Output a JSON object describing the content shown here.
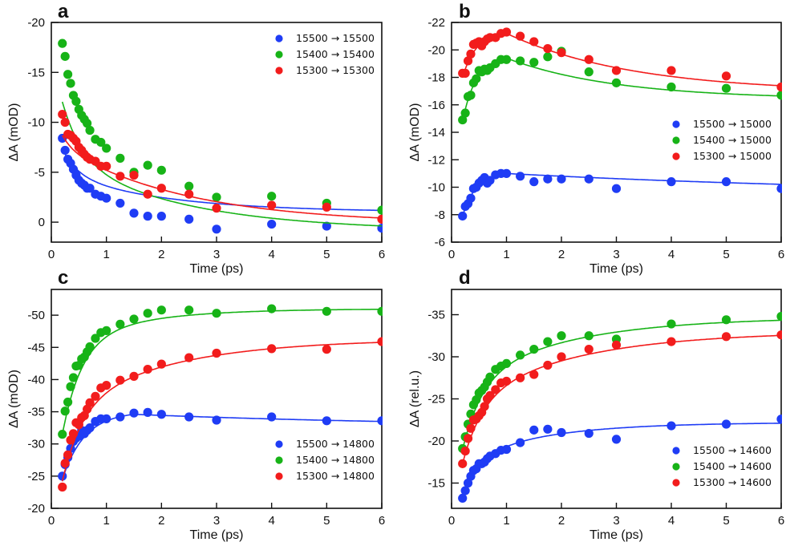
{
  "colors": {
    "blue": "#1f3cf5",
    "green": "#17b317",
    "red": "#f21c1c",
    "axis": "#111111"
  },
  "chart_data": [
    {
      "panel": "a",
      "type": "scatter",
      "title": "a",
      "xlabel": "Time (ps)",
      "ylabel": "ΔA (mOD)",
      "xlim": [
        0,
        6
      ],
      "ylim": [
        2,
        -20
      ],
      "y_inverted": true,
      "xticks": [
        0,
        1,
        2,
        3,
        4,
        5,
        6
      ],
      "yticks": [
        0,
        -5,
        -10,
        -15,
        -20
      ],
      "ytick_labels": [
        "0",
        "-5",
        "-10",
        "-15",
        "-20"
      ],
      "legend_position": "top-right",
      "grid": false,
      "series": [
        {
          "name": "15500 → 15500",
          "color": "blue",
          "x": [
            0.2,
            0.25,
            0.3,
            0.35,
            0.4,
            0.45,
            0.5,
            0.55,
            0.6,
            0.65,
            0.7,
            0.8,
            0.9,
            1.0,
            1.25,
            1.5,
            1.75,
            2,
            2.5,
            3,
            4,
            5,
            6
          ],
          "y": [
            -8.4,
            -7.2,
            -6.3,
            -5.9,
            -5.3,
            -4.7,
            -4.2,
            -3.9,
            -3.7,
            -3.4,
            -3.4,
            -2.8,
            -2.6,
            -2.4,
            -1.9,
            -0.9,
            -0.6,
            -0.6,
            -0.3,
            0.7,
            0.2,
            0.4,
            0.6
          ],
          "fit": {
            "model": "exp2",
            "A1": -5.2,
            "t1": 0.28,
            "A2": -4.2,
            "t2": 1.9,
            "c": 1.0
          }
        },
        {
          "name": "15400 → 15400",
          "color": "green",
          "x": [
            0.2,
            0.25,
            0.3,
            0.35,
            0.4,
            0.45,
            0.5,
            0.55,
            0.6,
            0.65,
            0.7,
            0.8,
            0.9,
            1.0,
            1.25,
            1.5,
            1.75,
            2,
            2.5,
            3,
            4,
            5,
            6
          ],
          "y": [
            -17.9,
            -16.6,
            -14.8,
            -13.9,
            -12.7,
            -12.1,
            -11.3,
            -10.7,
            -10.3,
            -9.9,
            -9.2,
            -8.3,
            -8.0,
            -7.4,
            -6.4,
            -5.0,
            -5.7,
            -5.2,
            -3.6,
            -2.5,
            -2.6,
            -1.9,
            -1.2
          ],
          "fit": {
            "model": "exp2",
            "A1": -10.0,
            "t1": 0.35,
            "A2": -8.0,
            "t2": 2.2,
            "c": -0.9
          }
        },
        {
          "name": "15300 → 15300",
          "color": "red",
          "x": [
            0.2,
            0.25,
            0.3,
            0.35,
            0.4,
            0.45,
            0.5,
            0.55,
            0.6,
            0.65,
            0.7,
            0.8,
            0.9,
            1.0,
            1.25,
            1.5,
            1.75,
            2,
            2.5,
            3,
            4,
            5,
            6
          ],
          "y": [
            -10.8,
            -10.0,
            -8.8,
            -8.7,
            -8.4,
            -8.1,
            -7.5,
            -7.2,
            -6.8,
            -6.5,
            -6.3,
            -6.1,
            -5.6,
            -5.6,
            -4.6,
            -4.7,
            -2.8,
            -3.4,
            -2.8,
            -1.4,
            -1.7,
            -1.5,
            -0.3
          ],
          "fit": {
            "model": "exp2",
            "A1": -3.5,
            "t1": 0.2,
            "A2": -8.3,
            "t2": 2.3,
            "c": -0.2
          }
        }
      ]
    },
    {
      "panel": "b",
      "type": "scatter",
      "title": "b",
      "xlabel": "Time (ps)",
      "ylabel": "ΔA (mOD)",
      "xlim": [
        0,
        6
      ],
      "ylim": [
        -6,
        -22
      ],
      "y_inverted": true,
      "xticks": [
        0,
        1,
        2,
        3,
        4,
        5,
        6
      ],
      "yticks": [
        -6,
        -8,
        -10,
        -12,
        -14,
        -16,
        -18,
        -20,
        -22
      ],
      "ytick_labels": [
        "-6",
        "-8",
        "-10",
        "-12",
        "-14",
        "-16",
        "-18",
        "-20",
        "-22"
      ],
      "legend_position": "center-right",
      "grid": false,
      "series": [
        {
          "name": "15500 → 15000",
          "color": "blue",
          "x": [
            0.2,
            0.25,
            0.3,
            0.35,
            0.4,
            0.45,
            0.5,
            0.55,
            0.6,
            0.65,
            0.7,
            0.8,
            0.9,
            1.0,
            1.25,
            1.5,
            1.75,
            2,
            2.5,
            3,
            4,
            5,
            6
          ],
          "y": [
            -7.9,
            -8.6,
            -8.8,
            -9.2,
            -9.9,
            -10.0,
            -10.3,
            -10.5,
            -10.7,
            -10.3,
            -10.5,
            -10.9,
            -11.0,
            -11.0,
            -10.8,
            -10.4,
            -10.6,
            -10.6,
            -10.6,
            -9.9,
            -10.4,
            -10.4,
            -9.9
          ],
          "fit": {
            "model": "risedecay",
            "peak": 1.0,
            "y0": -7.9,
            "ypk": -11.0,
            "yinf": -9.3,
            "td": 8.0
          }
        },
        {
          "name": "15400 → 15000",
          "color": "green",
          "x": [
            0.2,
            0.25,
            0.3,
            0.35,
            0.4,
            0.45,
            0.5,
            0.55,
            0.6,
            0.65,
            0.7,
            0.8,
            0.9,
            1.0,
            1.25,
            1.5,
            1.75,
            2,
            2.5,
            3,
            4,
            5,
            6
          ],
          "y": [
            -14.9,
            -15.4,
            -16.6,
            -16.7,
            -17.6,
            -17.9,
            -18.5,
            -18.4,
            -18.6,
            -18.5,
            -18.7,
            -19.0,
            -19.3,
            -19.3,
            -19.2,
            -19.1,
            -19.5,
            -19.9,
            -18.4,
            -17.6,
            -17.3,
            -17.2,
            -16.7
          ],
          "fit": {
            "model": "risedecay",
            "peak": 1.0,
            "y0": -14.8,
            "ypk": -19.4,
            "yinf": -16.4,
            "td": 2.0
          }
        },
        {
          "name": "15300 → 15000",
          "color": "red",
          "x": [
            0.2,
            0.25,
            0.3,
            0.35,
            0.4,
            0.45,
            0.5,
            0.55,
            0.6,
            0.65,
            0.7,
            0.8,
            0.9,
            1.0,
            1.25,
            1.5,
            1.75,
            2,
            2.5,
            3,
            4,
            5,
            6
          ],
          "y": [
            -18.3,
            -18.3,
            -19.2,
            -19.7,
            -20.4,
            -20.5,
            -20.6,
            -20.3,
            -20.6,
            -20.8,
            -20.9,
            -20.9,
            -21.2,
            -21.3,
            -21.0,
            -20.6,
            -20.1,
            -19.8,
            -19.3,
            -18.5,
            -18.5,
            -18.1,
            -17.3
          ],
          "fit": {
            "model": "risedecay",
            "peak": 1.0,
            "y0": -18.0,
            "ypk": -21.2,
            "yinf": -16.9,
            "td": 2.3
          }
        }
      ]
    },
    {
      "panel": "c",
      "type": "scatter",
      "title": "c",
      "xlabel": "Time (ps)",
      "ylabel": "ΔA (mOD)",
      "xlim": [
        0,
        6
      ],
      "ylim": [
        -20,
        -54
      ],
      "y_inverted": true,
      "xticks": [
        0,
        1,
        2,
        3,
        4,
        5,
        6
      ],
      "yticks": [
        -20,
        -25,
        -30,
        -35,
        -40,
        -45,
        -50
      ],
      "ytick_labels": [
        "-20",
        "-25",
        "-30",
        "-35",
        "-40",
        "-45",
        "-50"
      ],
      "legend_position": "bottom-right",
      "grid": false,
      "series": [
        {
          "name": "15500 → 14800",
          "color": "blue",
          "x": [
            0.2,
            0.25,
            0.3,
            0.35,
            0.4,
            0.45,
            0.5,
            0.55,
            0.6,
            0.65,
            0.7,
            0.8,
            0.9,
            1.0,
            1.25,
            1.5,
            1.75,
            2,
            2.5,
            3,
            4,
            5,
            6
          ],
          "y": [
            -25.0,
            -26.8,
            -27.9,
            -29.3,
            -30.4,
            -30.9,
            -31.2,
            -32.1,
            -31.6,
            -32.1,
            -32.5,
            -33.5,
            -33.9,
            -33.9,
            -34.2,
            -34.8,
            -34.9,
            -34.6,
            -34.2,
            -33.7,
            -34.2,
            -33.6,
            -33.6
          ],
          "fit": {
            "model": "risedecay",
            "peak": 1.5,
            "y0": -24.5,
            "ypk": -34.6,
            "yinf": -32.5,
            "td": 6.0
          }
        },
        {
          "name": "15400 → 14800",
          "color": "green",
          "x": [
            0.2,
            0.25,
            0.3,
            0.35,
            0.4,
            0.45,
            0.5,
            0.55,
            0.6,
            0.65,
            0.7,
            0.8,
            0.9,
            1.0,
            1.25,
            1.5,
            1.75,
            2,
            2.5,
            3,
            4,
            5,
            6
          ],
          "y": [
            -31.5,
            -35.1,
            -36.5,
            -38.9,
            -40.3,
            -42.1,
            -42.2,
            -43.2,
            -43.5,
            -44.3,
            -45.1,
            -46.4,
            -47.3,
            -47.6,
            -48.6,
            -49.4,
            -50.3,
            -50.8,
            -50.8,
            -50.3,
            -51.0,
            -50.6,
            -50.6
          ],
          "fit": {
            "model": "exp2rise",
            "A1": -14.0,
            "t1": 0.35,
            "A2": -5.0,
            "t2": 1.4,
            "c": -51.0,
            "t0": 0.2,
            "y0": -31.5
          }
        },
        {
          "name": "15300 → 14800",
          "color": "red",
          "x": [
            0.2,
            0.25,
            0.3,
            0.35,
            0.4,
            0.45,
            0.5,
            0.55,
            0.6,
            0.65,
            0.7,
            0.8,
            0.9,
            1.0,
            1.25,
            1.5,
            1.75,
            2,
            2.5,
            3,
            4,
            5,
            6
          ],
          "y": [
            -23.3,
            -27.0,
            -28.3,
            -30.6,
            -31.6,
            -33.3,
            -33.0,
            -34.1,
            -34.4,
            -35.4,
            -36.4,
            -37.4,
            -38.7,
            -39.1,
            -39.9,
            -40.5,
            -41.6,
            -42.4,
            -43.4,
            -44.1,
            -44.8,
            -44.7,
            -45.9
          ],
          "fit": {
            "model": "exp2rise",
            "A1": -11.5,
            "t1": 0.35,
            "A2": -11.5,
            "t2": 1.9,
            "c": -46.3,
            "t0": 0.2,
            "y0": -24.2
          }
        }
      ]
    },
    {
      "panel": "d",
      "type": "scatter",
      "title": "d",
      "xlabel": "Time (ps)",
      "ylabel": "ΔA (rel.u.)",
      "xlim": [
        0,
        6
      ],
      "ylim": [
        -12,
        -38
      ],
      "y_inverted": true,
      "xticks": [
        0,
        1,
        2,
        3,
        4,
        5,
        6
      ],
      "yticks": [
        -15,
        -20,
        -25,
        -30,
        -35
      ],
      "ytick_labels": [
        "-15",
        "-20",
        "-25",
        "-30",
        "-35"
      ],
      "legend_position": "bottom-right",
      "grid": false,
      "series": [
        {
          "name": "15500 → 14600",
          "color": "blue",
          "x": [
            0.2,
            0.25,
            0.3,
            0.35,
            0.4,
            0.45,
            0.5,
            0.55,
            0.6,
            0.65,
            0.7,
            0.8,
            0.9,
            1.0,
            1.25,
            1.5,
            1.75,
            2,
            2.5,
            3,
            4,
            5,
            6
          ],
          "y": [
            -13.2,
            -14.1,
            -15.0,
            -15.8,
            -16.5,
            -16.7,
            -17.3,
            -17.3,
            -17.5,
            -17.9,
            -18.2,
            -18.5,
            -18.9,
            -19.0,
            -19.8,
            -21.3,
            -21.4,
            -21.0,
            -20.9,
            -20.2,
            -21.8,
            -22.0,
            -22.6
          ],
          "fit": {
            "model": "exp2rise",
            "A1": -4.0,
            "t1": 0.3,
            "A2": -4.0,
            "t2": 1.5,
            "c": -22.2,
            "t0": 0.2,
            "y0": -13.4
          }
        },
        {
          "name": "15400 → 14600",
          "color": "green",
          "x": [
            0.2,
            0.25,
            0.3,
            0.35,
            0.4,
            0.45,
            0.5,
            0.55,
            0.6,
            0.65,
            0.7,
            0.8,
            0.9,
            1.0,
            1.25,
            1.5,
            1.75,
            2,
            2.5,
            3,
            4,
            5,
            6
          ],
          "y": [
            -19.1,
            -20.5,
            -22.0,
            -23.2,
            -24.3,
            -24.9,
            -25.7,
            -26.0,
            -26.4,
            -27.0,
            -27.6,
            -28.5,
            -28.9,
            -29.2,
            -30.2,
            -30.9,
            -31.8,
            -32.5,
            -32.5,
            -32.1,
            -33.9,
            -34.4,
            -34.8
          ],
          "fit": {
            "model": "exp2rise",
            "A1": -8.0,
            "t1": 0.35,
            "A2": -7.7,
            "t2": 1.9,
            "c": -34.7,
            "t0": 0.2,
            "y0": -19.0
          }
        },
        {
          "name": "15300 → 14600",
          "color": "red",
          "x": [
            0.2,
            0.25,
            0.3,
            0.35,
            0.4,
            0.45,
            0.5,
            0.55,
            0.6,
            0.65,
            0.7,
            0.8,
            0.9,
            1.0,
            1.25,
            1.5,
            1.75,
            2,
            2.5,
            3,
            4,
            5,
            6
          ],
          "y": [
            -17.3,
            -18.8,
            -20.3,
            -21.5,
            -22.5,
            -22.6,
            -23.0,
            -23.4,
            -24.1,
            -25.0,
            -25.4,
            -26.1,
            -26.9,
            -27.1,
            -27.5,
            -27.9,
            -29.0,
            -30.0,
            -30.9,
            -31.4,
            -31.8,
            -32.4,
            -32.6
          ],
          "fit": {
            "model": "exp2rise",
            "A1": -7.5,
            "t1": 0.35,
            "A2": -8.8,
            "t2": 2.0,
            "c": -33.0,
            "t0": 0.2,
            "y0": -17.3
          }
        }
      ]
    }
  ]
}
